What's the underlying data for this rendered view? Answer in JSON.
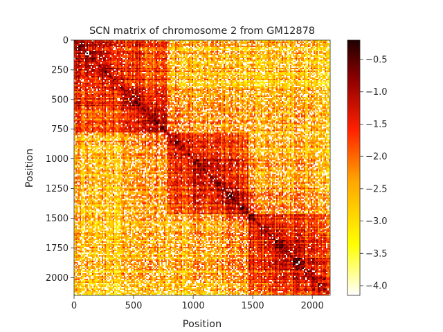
{
  "chart_data": {
    "type": "heatmap",
    "title": "SCN matrix of chromosome 2 from GM12878",
    "xlabel": "Position",
    "ylabel": "Position",
    "x_range": [
      0,
      2150
    ],
    "y_range": [
      0,
      2150
    ],
    "x_ticks": [
      "0",
      "500",
      "1000",
      "1500",
      "2000"
    ],
    "y_ticks": [
      "0",
      "250",
      "500",
      "750",
      "1000",
      "1250",
      "1500",
      "1750",
      "2000"
    ],
    "x_tick_values": [
      0,
      500,
      1000,
      1500,
      2000
    ],
    "y_tick_values": [
      0,
      250,
      500,
      750,
      1000,
      1250,
      1500,
      1750,
      2000
    ],
    "colormap": "hot_r",
    "colorbar": {
      "range": [
        -4.15,
        -0.2
      ],
      "ticks": [
        "−0.5",
        "−1.0",
        "−1.5",
        "−2.0",
        "−2.5",
        "−3.0",
        "−3.5",
        "−4.0"
      ],
      "tick_values": [
        -0.5,
        -1.0,
        -1.5,
        -2.0,
        -2.5,
        -3.0,
        -3.5,
        -4.0
      ]
    },
    "blocks": [
      [
        0,
        780
      ],
      [
        780,
        1460
      ],
      [
        1460,
        2150
      ]
    ],
    "colors": {
      "low": "#ffffff",
      "mid_low": "#ffff00",
      "mid": "#ffa500",
      "mid_high": "#ff2000",
      "high": "#200000"
    }
  }
}
